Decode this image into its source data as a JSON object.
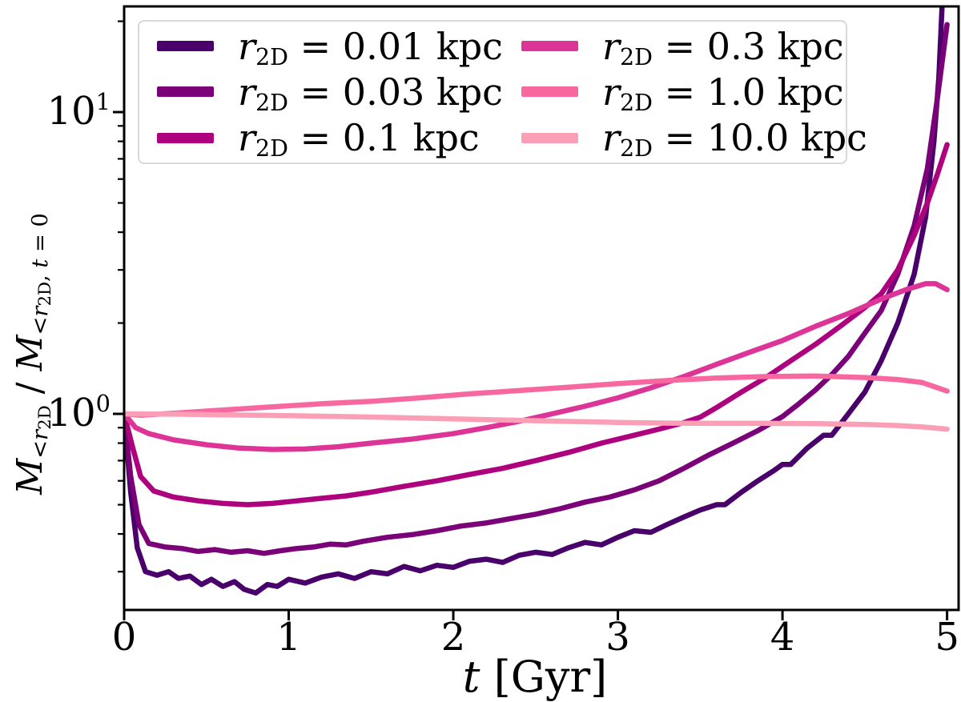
{
  "figure": {
    "background": "#ffffff",
    "frame_color": "#000000",
    "text_color": "#000000",
    "legend_border_color": "#d9d9d9"
  },
  "axes": {
    "xlabel": {
      "var": "t",
      "rest": " [Gyr]"
    },
    "ylabel": {
      "base1": "M",
      "sub1_lt": "<",
      "sub1_r": "r",
      "sub1_2d": "2D",
      "slash": " / ",
      "base2": "M",
      "sub2_lt": "<",
      "sub2_r": "r",
      "sub2_2d": "2D",
      "sub2_comma": ", ",
      "sub2_t": "t",
      "sub2_eq": " = 0"
    }
  },
  "chart_data": {
    "type": "line",
    "title": "",
    "xlabel": "t [Gyr]",
    "ylabel": "M_{<r_2D} / M_{<r_2D, t=0}",
    "grid": false,
    "x_axis": {
      "scale": "linear",
      "lim": [
        0,
        5.07
      ],
      "ticks": [
        "0",
        "1",
        "2",
        "3",
        "4",
        "5"
      ],
      "tick_values": [
        0,
        1,
        2,
        3,
        4,
        5
      ]
    },
    "y_axis": {
      "scale": "log",
      "lim": [
        0.224,
        22.4
      ],
      "major_ticks": [
        {
          "base": "10",
          "exp": "1",
          "value": 10
        },
        {
          "base": "10",
          "exp": "0",
          "value": 1
        }
      ],
      "minor_tick_values": [
        0.3,
        0.4,
        0.5,
        0.6,
        0.7,
        0.8,
        0.9,
        2,
        3,
        4,
        5,
        6,
        7,
        8,
        9,
        20
      ]
    },
    "legend": {
      "position": "upper left",
      "columns": 2,
      "items": [
        {
          "color": "#49006a",
          "var": "r",
          "sub": "2D",
          "rest": " = 0.01 kpc"
        },
        {
          "color": "#7a0177",
          "var": "r",
          "sub": "2D",
          "rest": " = 0.03 kpc"
        },
        {
          "color": "#ae017e",
          "var": "r",
          "sub": "2D",
          "rest": " = 0.1 kpc"
        },
        {
          "color": "#dd3497",
          "var": "r",
          "sub": "2D",
          "rest": " = 0.3 kpc"
        },
        {
          "color": "#f768a1",
          "var": "r",
          "sub": "2D",
          "rest": " = 1.0 kpc"
        },
        {
          "color": "#fa9fb5",
          "var": "r",
          "sub": "2D",
          "rest": " = 10.0 kpc"
        }
      ]
    },
    "series": [
      {
        "name": "r_2D = 0.01 kpc",
        "r_kpc": 0.01,
        "color": "#49006a",
        "points": [
          [
            0,
            1.0
          ],
          [
            0.04,
            0.55
          ],
          [
            0.08,
            0.36
          ],
          [
            0.13,
            0.3
          ],
          [
            0.2,
            0.292
          ],
          [
            0.27,
            0.3
          ],
          [
            0.33,
            0.285
          ],
          [
            0.4,
            0.29
          ],
          [
            0.47,
            0.272
          ],
          [
            0.53,
            0.283
          ],
          [
            0.6,
            0.268
          ],
          [
            0.67,
            0.278
          ],
          [
            0.73,
            0.262
          ],
          [
            0.8,
            0.255
          ],
          [
            0.87,
            0.272
          ],
          [
            0.93,
            0.268
          ],
          [
            1.0,
            0.283
          ],
          [
            1.1,
            0.275
          ],
          [
            1.2,
            0.288
          ],
          [
            1.3,
            0.295
          ],
          [
            1.4,
            0.285
          ],
          [
            1.5,
            0.3
          ],
          [
            1.6,
            0.295
          ],
          [
            1.7,
            0.312
          ],
          [
            1.8,
            0.302
          ],
          [
            1.9,
            0.315
          ],
          [
            2.0,
            0.31
          ],
          [
            2.1,
            0.325
          ],
          [
            2.2,
            0.33
          ],
          [
            2.3,
            0.322
          ],
          [
            2.4,
            0.34
          ],
          [
            2.5,
            0.348
          ],
          [
            2.6,
            0.342
          ],
          [
            2.7,
            0.36
          ],
          [
            2.8,
            0.375
          ],
          [
            2.9,
            0.368
          ],
          [
            3.0,
            0.39
          ],
          [
            3.1,
            0.41
          ],
          [
            3.2,
            0.405
          ],
          [
            3.3,
            0.43
          ],
          [
            3.4,
            0.455
          ],
          [
            3.5,
            0.48
          ],
          [
            3.6,
            0.5
          ],
          [
            3.65,
            0.5
          ],
          [
            3.75,
            0.55
          ],
          [
            3.85,
            0.6
          ],
          [
            3.95,
            0.65
          ],
          [
            4.0,
            0.68
          ],
          [
            4.05,
            0.68
          ],
          [
            4.15,
            0.77
          ],
          [
            4.25,
            0.85
          ],
          [
            4.3,
            0.85
          ],
          [
            4.4,
            1.0
          ],
          [
            4.5,
            1.18
          ],
          [
            4.6,
            1.5
          ],
          [
            4.7,
            2.0
          ],
          [
            4.8,
            2.9
          ],
          [
            4.87,
            4.5
          ],
          [
            4.92,
            8.0
          ],
          [
            4.95,
            13.0
          ],
          [
            4.97,
            22.5
          ]
        ]
      },
      {
        "name": "r_2D = 0.03 kpc",
        "r_kpc": 0.03,
        "color": "#7a0177",
        "points": [
          [
            0,
            1.0
          ],
          [
            0.04,
            0.62
          ],
          [
            0.09,
            0.43
          ],
          [
            0.15,
            0.372
          ],
          [
            0.25,
            0.362
          ],
          [
            0.35,
            0.358
          ],
          [
            0.45,
            0.35
          ],
          [
            0.55,
            0.355
          ],
          [
            0.65,
            0.348
          ],
          [
            0.75,
            0.352
          ],
          [
            0.85,
            0.345
          ],
          [
            0.95,
            0.352
          ],
          [
            1.05,
            0.358
          ],
          [
            1.15,
            0.362
          ],
          [
            1.25,
            0.37
          ],
          [
            1.35,
            0.368
          ],
          [
            1.45,
            0.378
          ],
          [
            1.6,
            0.39
          ],
          [
            1.75,
            0.398
          ],
          [
            1.9,
            0.41
          ],
          [
            2.05,
            0.425
          ],
          [
            2.2,
            0.435
          ],
          [
            2.35,
            0.45
          ],
          [
            2.5,
            0.465
          ],
          [
            2.65,
            0.485
          ],
          [
            2.8,
            0.51
          ],
          [
            2.95,
            0.53
          ],
          [
            3.1,
            0.56
          ],
          [
            3.25,
            0.6
          ],
          [
            3.4,
            0.66
          ],
          [
            3.55,
            0.73
          ],
          [
            3.7,
            0.8
          ],
          [
            3.85,
            0.88
          ],
          [
            4.0,
            0.98
          ],
          [
            4.1,
            1.08
          ],
          [
            4.2,
            1.2
          ],
          [
            4.3,
            1.35
          ],
          [
            4.4,
            1.55
          ],
          [
            4.5,
            1.85
          ],
          [
            4.6,
            2.2
          ],
          [
            4.7,
            2.9
          ],
          [
            4.8,
            4.2
          ],
          [
            4.88,
            6.5
          ],
          [
            4.94,
            11.0
          ],
          [
            5.0,
            19.5
          ]
        ]
      },
      {
        "name": "r_2D = 0.1 kpc",
        "r_kpc": 0.1,
        "color": "#ae017e",
        "points": [
          [
            0,
            1.0
          ],
          [
            0.05,
            0.78
          ],
          [
            0.1,
            0.62
          ],
          [
            0.18,
            0.555
          ],
          [
            0.3,
            0.53
          ],
          [
            0.45,
            0.515
          ],
          [
            0.6,
            0.505
          ],
          [
            0.75,
            0.5
          ],
          [
            0.9,
            0.505
          ],
          [
            1.05,
            0.515
          ],
          [
            1.2,
            0.525
          ],
          [
            1.35,
            0.535
          ],
          [
            1.5,
            0.55
          ],
          [
            1.7,
            0.575
          ],
          [
            1.9,
            0.6
          ],
          [
            2.1,
            0.63
          ],
          [
            2.3,
            0.66
          ],
          [
            2.5,
            0.7
          ],
          [
            2.7,
            0.745
          ],
          [
            2.9,
            0.8
          ],
          [
            3.1,
            0.85
          ],
          [
            3.25,
            0.89
          ],
          [
            3.4,
            0.935
          ],
          [
            3.5,
            0.975
          ],
          [
            3.6,
            1.05
          ],
          [
            3.75,
            1.18
          ],
          [
            3.9,
            1.32
          ],
          [
            4.05,
            1.5
          ],
          [
            4.2,
            1.7
          ],
          [
            4.35,
            1.95
          ],
          [
            4.5,
            2.25
          ],
          [
            4.6,
            2.5
          ],
          [
            4.7,
            3.0
          ],
          [
            4.8,
            3.9
          ],
          [
            4.88,
            5.0
          ],
          [
            4.94,
            6.2
          ],
          [
            5.0,
            7.8
          ]
        ]
      },
      {
        "name": "r_2D = 0.3 kpc",
        "r_kpc": 0.3,
        "color": "#dd3497",
        "points": [
          [
            0,
            1.0
          ],
          [
            0.07,
            0.9
          ],
          [
            0.15,
            0.86
          ],
          [
            0.3,
            0.82
          ],
          [
            0.5,
            0.79
          ],
          [
            0.7,
            0.77
          ],
          [
            0.9,
            0.762
          ],
          [
            1.1,
            0.765
          ],
          [
            1.3,
            0.778
          ],
          [
            1.5,
            0.8
          ],
          [
            1.75,
            0.825
          ],
          [
            2.0,
            0.86
          ],
          [
            2.2,
            0.9
          ],
          [
            2.4,
            0.945
          ],
          [
            2.6,
            1.0
          ],
          [
            2.8,
            1.06
          ],
          [
            3.0,
            1.13
          ],
          [
            3.2,
            1.22
          ],
          [
            3.4,
            1.33
          ],
          [
            3.6,
            1.46
          ],
          [
            3.8,
            1.6
          ],
          [
            4.0,
            1.75
          ],
          [
            4.2,
            1.95
          ],
          [
            4.4,
            2.15
          ],
          [
            4.6,
            2.4
          ],
          [
            4.75,
            2.58
          ],
          [
            4.87,
            2.7
          ],
          [
            4.93,
            2.7
          ],
          [
            5.0,
            2.58
          ]
        ]
      },
      {
        "name": "r_2D = 1.0 kpc",
        "r_kpc": 1.0,
        "color": "#f768a1",
        "points": [
          [
            0,
            1.0
          ],
          [
            0.1,
            0.99
          ],
          [
            0.3,
            1.005
          ],
          [
            0.6,
            1.03
          ],
          [
            0.9,
            1.055
          ],
          [
            1.2,
            1.08
          ],
          [
            1.5,
            1.1
          ],
          [
            1.8,
            1.13
          ],
          [
            2.1,
            1.165
          ],
          [
            2.4,
            1.195
          ],
          [
            2.7,
            1.225
          ],
          [
            3.0,
            1.26
          ],
          [
            3.3,
            1.29
          ],
          [
            3.6,
            1.315
          ],
          [
            3.9,
            1.33
          ],
          [
            4.2,
            1.335
          ],
          [
            4.5,
            1.32
          ],
          [
            4.7,
            1.3
          ],
          [
            4.85,
            1.27
          ],
          [
            5.0,
            1.19
          ]
        ]
      },
      {
        "name": "r_2D = 10.0 kpc",
        "r_kpc": 10.0,
        "color": "#fa9fb5",
        "points": [
          [
            0,
            1.0
          ],
          [
            0.3,
            0.998
          ],
          [
            0.6,
            0.993
          ],
          [
            0.9,
            0.988
          ],
          [
            1.2,
            0.982
          ],
          [
            1.5,
            0.976
          ],
          [
            1.8,
            0.968
          ],
          [
            2.1,
            0.96
          ],
          [
            2.4,
            0.952
          ],
          [
            2.7,
            0.944
          ],
          [
            3.0,
            0.937
          ],
          [
            3.3,
            0.932
          ],
          [
            3.6,
            0.93
          ],
          [
            3.9,
            0.93
          ],
          [
            4.2,
            0.928
          ],
          [
            4.5,
            0.922
          ],
          [
            4.7,
            0.915
          ],
          [
            4.85,
            0.905
          ],
          [
            5.0,
            0.89
          ]
        ]
      }
    ]
  }
}
